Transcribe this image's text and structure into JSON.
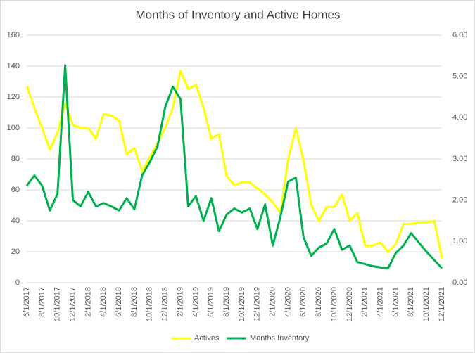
{
  "chart_data": {
    "type": "line",
    "title": "Months of Inventory and Active Homes",
    "categories": [
      "6/1/2017",
      null,
      "8/1/2017",
      null,
      "10/1/2017",
      null,
      "12/1/2017",
      null,
      "2/1/2018",
      null,
      "4/1/2018",
      null,
      "6/1/2018",
      null,
      "8/1/2018",
      null,
      "10/1/2018",
      null,
      "12/1/2018",
      null,
      "2/1/2019",
      null,
      "4/1/2019",
      null,
      "6/1/2019",
      null,
      "8/1/2019",
      null,
      "10/1/2019",
      null,
      "12/1/2019",
      null,
      "2/1/2020",
      null,
      "4/1/2020",
      null,
      "6/1/2020",
      null,
      "8/1/2020",
      null,
      "10/1/2020",
      null,
      "12/1/2020",
      null,
      "2/1/2021",
      null,
      "4/1/2021",
      null,
      "6/1/2021",
      null,
      "8/1/2021",
      null,
      "10/1/2021",
      null,
      "12/1/2021"
    ],
    "series": [
      {
        "name": "Actives",
        "color": "#ffff00",
        "values": [
          127,
          113,
          100,
          86,
          97,
          116,
          102,
          100,
          100,
          93,
          109,
          108,
          105,
          83,
          87,
          72,
          81,
          90,
          100,
          113,
          137,
          125,
          128,
          113,
          93,
          96,
          69,
          63,
          65,
          65,
          61,
          57,
          52,
          45,
          80,
          100,
          79,
          50,
          40,
          49,
          49,
          57,
          40,
          45,
          24,
          24,
          26,
          20,
          25,
          38,
          38,
          39,
          39,
          40,
          16
        ]
      },
      {
        "name": "Months Inventory",
        "color": "#00b050",
        "axis": "y2",
        "values": [
          2.35,
          2.6,
          2.35,
          1.75,
          2.15,
          5.27,
          2.0,
          1.85,
          2.2,
          1.85,
          1.93,
          1.85,
          1.75,
          2.05,
          1.78,
          2.6,
          2.92,
          3.3,
          4.25,
          4.75,
          4.45,
          1.85,
          2.1,
          1.5,
          2.05,
          1.25,
          1.65,
          1.8,
          1.7,
          1.8,
          1.3,
          1.9,
          0.9,
          1.6,
          2.45,
          2.55,
          1.1,
          0.65,
          0.85,
          0.95,
          1.3,
          0.8,
          0.9,
          0.5,
          0.45,
          0.4,
          0.37,
          0.35,
          0.72,
          0.9,
          1.2,
          0.97,
          0.75,
          0.55,
          0.35
        ]
      }
    ],
    "ylim": [
      0,
      160
    ],
    "yticks": [
      0,
      20,
      40,
      60,
      80,
      100,
      120,
      140,
      160
    ],
    "y2lim": [
      0,
      6
    ],
    "y2ticks": [
      {
        "value": 0,
        "label": "0.00"
      },
      {
        "value": 1,
        "label": "1.00"
      },
      {
        "value": 2,
        "label": "2.00"
      },
      {
        "value": 3,
        "label": "3.00"
      },
      {
        "value": 4,
        "label": "4.00"
      },
      {
        "value": 5,
        "label": "5.00"
      },
      {
        "value": 6,
        "label": "6.00"
      }
    ],
    "grid": true,
    "legend": "bottom"
  }
}
